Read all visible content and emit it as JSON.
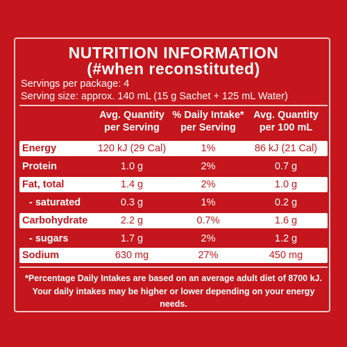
{
  "title_line1": "NUTRITION INFORMATION",
  "title_line2": "(#when reconstituted)",
  "servings_per_package": "Servings per package: 4",
  "serving_size": "Serving size: approx. 140 mL (15 g Sachet + 125 mL Water)",
  "columns": {
    "avg_per_serving": [
      "Avg. Quantity",
      "per Serving"
    ],
    "daily_intake": [
      "% Daily Intake*",
      "per Serving"
    ],
    "avg_per_100": [
      "Avg. Quantity",
      "per 100 mL"
    ]
  },
  "rows": [
    {
      "label": "Energy",
      "per_serving": "120 kJ (29 Cal)",
      "daily": "1%",
      "per_100": "86 kJ (21 Cal)"
    },
    {
      "label": "Protein",
      "per_serving": "1.0 g",
      "daily": "2%",
      "per_100": "0.7 g"
    },
    {
      "label": "Fat, total",
      "per_serving": "1.4 g",
      "daily": "2%",
      "per_100": "1.0 g"
    },
    {
      "label": "- saturated",
      "per_serving": "0.3 g",
      "daily": "1%",
      "per_100": "0.2 g"
    },
    {
      "label": "Carbohydrate",
      "per_serving": "2.2 g",
      "daily": "0.7%",
      "per_100": "1.6 g"
    },
    {
      "label": "- sugars",
      "per_serving": "1.7 g",
      "daily": "2%",
      "per_100": "1.2 g"
    },
    {
      "label": "Sodium",
      "per_serving": "630 mg",
      "daily": "27%",
      "per_100": "450 mg"
    }
  ],
  "footnote_line1": "*Percentage Daily Intakes are based on an average adult diet of 8700 kJ.",
  "footnote_line2": "Your daily intakes may be higher or lower depending on your energy needs.",
  "colors": {
    "background": "#c4161c",
    "band": "#ffffff",
    "text": "#ffffff"
  }
}
